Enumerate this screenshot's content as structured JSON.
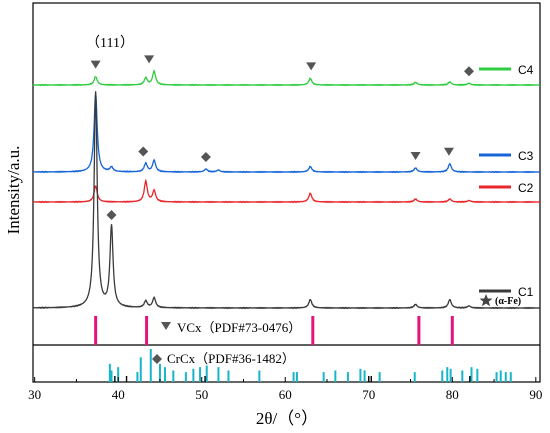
{
  "chart_data": {
    "type": "line",
    "xlabel": "2θ/（°）",
    "ylabel": "Intensity/a.u.",
    "xlim": [
      29.8,
      90.5
    ],
    "x_ticks": [
      30,
      40,
      50,
      60,
      70,
      80,
      90
    ],
    "grid": false,
    "legend_placement": "right, beside each curve",
    "annotation_111": "（111）",
    "series": [
      {
        "name": "C4",
        "color": "#2ecc40",
        "peaks": [
          [
            37.3,
            0.38
          ],
          [
            43.3,
            0.32
          ],
          [
            44.3,
            0.62
          ],
          [
            63.0,
            0.3
          ],
          [
            75.6,
            0.12
          ],
          [
            79.7,
            0.14
          ],
          [
            82.0,
            0.08
          ]
        ],
        "markers": [
          {
            "x": 37.3,
            "shape": "triangle"
          },
          {
            "x": 43.7,
            "shape": "triangle"
          },
          {
            "x": 63.1,
            "shape": "triangle"
          },
          {
            "x": 82.0,
            "shape": "diamond"
          }
        ]
      },
      {
        "name": "C3",
        "color": "#1565d8",
        "peaks": [
          [
            37.3,
            3.15
          ],
          [
            39.2,
            0.18
          ],
          [
            43.3,
            0.34
          ],
          [
            44.3,
            0.46
          ],
          [
            50.5,
            0.12
          ],
          [
            52.0,
            0.08
          ],
          [
            63.0,
            0.22
          ],
          [
            75.6,
            0.16
          ],
          [
            79.7,
            0.33
          ]
        ],
        "markers": [
          {
            "x": 43.0,
            "shape": "diamond"
          },
          {
            "x": 50.5,
            "shape": "diamond"
          },
          {
            "x": 75.6,
            "shape": "triangle"
          },
          {
            "x": 79.6,
            "shape": "triangle"
          }
        ]
      },
      {
        "name": "C2",
        "color": "#e8262b",
        "peaks": [
          [
            37.3,
            0.65
          ],
          [
            43.3,
            0.82
          ],
          [
            44.3,
            0.45
          ],
          [
            63.0,
            0.35
          ],
          [
            75.6,
            0.12
          ],
          [
            79.7,
            0.12
          ],
          [
            82.0,
            0.06
          ]
        ],
        "markers": []
      },
      {
        "name": "C1",
        "color": "#3a3a3a",
        "peaks": [
          [
            37.3,
            7.2
          ],
          [
            39.2,
            2.7
          ],
          [
            43.3,
            0.22
          ],
          [
            44.3,
            0.33
          ],
          [
            63.0,
            0.28
          ],
          [
            75.6,
            0.12
          ],
          [
            79.7,
            0.28
          ],
          [
            82.0,
            0.07
          ]
        ],
        "markers": [
          {
            "x": 39.2,
            "shape": "diamond"
          }
        ]
      }
    ],
    "star_legend_label": "(α-Fe)",
    "reference_patterns": [
      {
        "name": "VCx（PDF#73-0476）",
        "color": "#e6127d",
        "lines": [
          [
            37.3,
            1.0
          ],
          [
            43.4,
            1.0
          ],
          [
            63.3,
            1.0
          ],
          [
            76.0,
            1.0
          ],
          [
            80.0,
            1.0
          ]
        ]
      },
      {
        "name": "CrCx（PDF#36-1482）",
        "color": "#17b5c7",
        "dark_color": "#000000",
        "lines": [
          [
            39.0,
            0.55
          ],
          [
            39.2,
            0.35
          ],
          [
            40.0,
            0.45
          ],
          [
            42.3,
            0.3
          ],
          [
            42.7,
            0.75
          ],
          [
            43.9,
            1.0
          ],
          [
            45.0,
            0.55
          ],
          [
            45.6,
            0.45
          ],
          [
            46.6,
            0.35
          ],
          [
            48.1,
            0.3
          ],
          [
            49.0,
            0.4
          ],
          [
            49.8,
            0.45
          ],
          [
            50.6,
            0.5
          ],
          [
            52.0,
            0.45
          ],
          [
            53.2,
            0.35
          ],
          [
            56.9,
            0.35
          ],
          [
            61.0,
            0.3
          ],
          [
            61.4,
            0.3
          ],
          [
            64.6,
            0.3
          ],
          [
            66.0,
            0.35
          ],
          [
            67.5,
            0.3
          ],
          [
            69.0,
            0.4
          ],
          [
            69.5,
            0.35
          ],
          [
            71.3,
            0.3
          ],
          [
            75.5,
            0.3
          ],
          [
            78.8,
            0.35
          ],
          [
            79.4,
            0.45
          ],
          [
            79.8,
            0.4
          ],
          [
            81.2,
            0.35
          ],
          [
            82.3,
            0.45
          ],
          [
            83.0,
            0.4
          ],
          [
            85.3,
            0.3
          ],
          [
            85.8,
            0.35
          ],
          [
            86.4,
            0.3
          ],
          [
            87.0,
            0.3
          ]
        ],
        "black_lines": [
          39.6,
          41.0,
          50.4,
          70.0,
          70.3,
          82.1
        ]
      }
    ]
  }
}
